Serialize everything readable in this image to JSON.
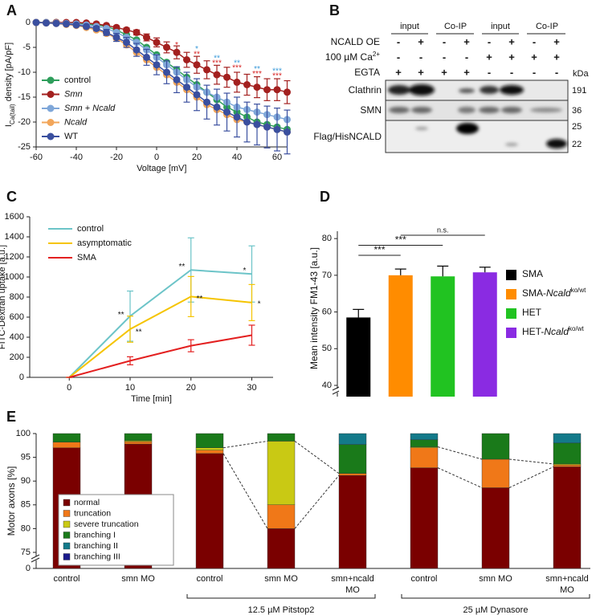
{
  "panel_labels": [
    "A",
    "B",
    "C",
    "D",
    "E"
  ],
  "chart_data": [
    {
      "type": "line",
      "xlabel": "Voltage [mV]",
      "ylabel": [
        "I",
        "Ca(tail)",
        " density [pA/pF]"
      ],
      "x": [
        -60,
        -55,
        -50,
        -45,
        -40,
        -35,
        -30,
        -25,
        -20,
        -15,
        -10,
        -5,
        0,
        5,
        10,
        15,
        20,
        25,
        30,
        35,
        40,
        45,
        50,
        55,
        60,
        65
      ],
      "xlim": [
        -60,
        65
      ],
      "xticks": [
        -60,
        -40,
        -20,
        0,
        20,
        40,
        60
      ],
      "ylim": [
        -25,
        0
      ],
      "yticks": [
        -25,
        -20,
        -15,
        -10,
        -5,
        0
      ],
      "markers": true,
      "legend": "left",
      "series": [
        {
          "name": "control",
          "color": "#2e9e5b",
          "italic": false,
          "values": [
            0,
            0,
            0,
            -0.1,
            -0.2,
            -0.3,
            -0.5,
            -0.8,
            -1.5,
            -2.5,
            -3.5,
            -5,
            -6.5,
            -8,
            -9.5,
            -11,
            -12.5,
            -14,
            -15.5,
            -17,
            -18,
            -19,
            -20,
            -20.5,
            -21,
            -21.5
          ]
        },
        {
          "name": "Smn",
          "color": "#a3201f",
          "italic": true,
          "values": [
            0,
            0,
            0,
            0,
            0,
            -0.1,
            -0.3,
            -0.6,
            -1,
            -1.5,
            -2,
            -3,
            -4,
            -5,
            -6,
            -7.5,
            -8.5,
            -9.5,
            -10.5,
            -11,
            -12,
            -12.5,
            -13,
            -13.5,
            -13.5,
            -14
          ],
          "errors": [
            0,
            0,
            0,
            0,
            0,
            0.1,
            0.1,
            0.2,
            0.3,
            0.4,
            0.5,
            0.7,
            0.9,
            1.1,
            1.3,
            1.5,
            1.7,
            1.8,
            1.9,
            2,
            2,
            2.1,
            2.1,
            2.2,
            2.2,
            2.3
          ]
        },
        {
          "name": "Smn + Ncald",
          "color": "#7fa7d9",
          "italic": true,
          "values": [
            0,
            0,
            -0.1,
            -0.2,
            -0.3,
            -0.5,
            -0.8,
            -1.2,
            -2,
            -3,
            -4,
            -5.5,
            -7,
            -8.5,
            -10,
            -11.5,
            -13,
            -14,
            -15,
            -16,
            -17,
            -17.5,
            -18,
            -18.5,
            -19,
            -19.5
          ]
        },
        {
          "name": "Ncald",
          "color": "#f2a65a",
          "italic": true,
          "values": [
            0,
            -0.1,
            -0.2,
            -0.4,
            -0.6,
            -1,
            -1.5,
            -2.2,
            -3.2,
            -4.5,
            -6,
            -7.5,
            -9,
            -10.5,
            -12,
            -13.5,
            -15,
            -16.5,
            -17.5,
            -18.5,
            -19.5,
            -20,
            -20.5,
            -21,
            -21.5,
            -22
          ]
        },
        {
          "name": "WT",
          "color": "#3a4f9f",
          "italic": false,
          "values": [
            0,
            -0.1,
            -0.2,
            -0.3,
            -0.5,
            -0.8,
            -1.2,
            -2,
            -3,
            -4,
            -5.5,
            -7,
            -8.5,
            -10,
            -11.5,
            -13,
            -14.5,
            -16,
            -17,
            -18,
            -19,
            -20,
            -20.5,
            -21,
            -21.5,
            -22
          ],
          "errors": [
            0,
            0,
            0.1,
            0.1,
            0.2,
            0.3,
            0.4,
            0.6,
            0.8,
            1,
            1.3,
            1.6,
            2,
            2.3,
            2.6,
            3,
            3.2,
            3.4,
            3.6,
            3.8,
            4,
            4,
            4.1,
            4.2,
            4.3,
            4.4
          ]
        }
      ],
      "annotations": [
        {
          "x": 10,
          "y": -4.6,
          "text": "*",
          "color": "#d62020"
        },
        {
          "x": 20,
          "y": -5.4,
          "text": "*",
          "color": "#3a9ad9"
        },
        {
          "x": 20,
          "y": -6.4,
          "text": "**",
          "color": "#d62020"
        },
        {
          "x": 30,
          "y": -7.2,
          "text": "**",
          "color": "#3a9ad9"
        },
        {
          "x": 30,
          "y": -8.2,
          "text": "***",
          "color": "#d62020"
        },
        {
          "x": 40,
          "y": -8.2,
          "text": "**",
          "color": "#3a9ad9"
        },
        {
          "x": 40,
          "y": -9.2,
          "text": "***",
          "color": "#d62020"
        },
        {
          "x": 50,
          "y": -9.4,
          "text": "**",
          "color": "#3a9ad9"
        },
        {
          "x": 50,
          "y": -10.4,
          "text": "***",
          "color": "#d62020"
        },
        {
          "x": 60,
          "y": -9.8,
          "text": "***",
          "color": "#3a9ad9"
        },
        {
          "x": 60,
          "y": -10.8,
          "text": "***",
          "color": "#d62020"
        }
      ]
    },
    {
      "type": "line",
      "xlabel": "Time [min]",
      "ylabel": [
        "FITC-Dextran uptake [a.u.]"
      ],
      "x": [
        0,
        10,
        20,
        30
      ],
      "xlim": [
        -6.5,
        33.5
      ],
      "xticks": [
        0,
        10,
        20,
        30
      ],
      "ylim": [
        0,
        1600
      ],
      "yticks": [
        0,
        200,
        400,
        600,
        800,
        1000,
        1200,
        1400,
        1600
      ],
      "markers": false,
      "legend": "top-left",
      "series": [
        {
          "name": "control",
          "color": "#6cc4c8",
          "italic": false,
          "values": [
            0,
            610,
            1070,
            1030
          ],
          "errors": [
            0,
            250,
            320,
            280
          ]
        },
        {
          "name": "asymptomatic",
          "color": "#f5c400",
          "italic": false,
          "values": [
            0,
            480,
            805,
            745
          ],
          "errors": [
            0,
            130,
            200,
            180
          ]
        },
        {
          "name": "SMA",
          "color": "#e32020",
          "italic": false,
          "values": [
            0,
            165,
            315,
            420
          ],
          "errors": [
            0,
            40,
            60,
            100
          ]
        }
      ],
      "annotations": [
        {
          "x": 8.5,
          "y": 620,
          "text": "**",
          "color": "#111"
        },
        {
          "x": 11.4,
          "y": 450,
          "text": "**",
          "color": "#111"
        },
        {
          "x": 18.5,
          "y": 1100,
          "text": "**",
          "color": "#111"
        },
        {
          "x": 21.4,
          "y": 780,
          "text": "**",
          "color": "#111"
        },
        {
          "x": 28.8,
          "y": 1060,
          "text": "*",
          "color": "#111"
        },
        {
          "x": 31.2,
          "y": 730,
          "text": "*",
          "color": "#111"
        }
      ]
    },
    {
      "type": "bar",
      "ylabel": [
        "Mean intensity FM1-43 [a.u.]"
      ],
      "categories": [
        [
          "SMA"
        ],
        [
          "SMA-",
          "Ncald",
          "ko/wt"
        ],
        [
          "HET"
        ],
        [
          "HET-",
          "Ncald",
          "ko/wt"
        ]
      ],
      "values": [
        58.5,
        70,
        69.7,
        70.8
      ],
      "errors": [
        2.2,
        1.7,
        2.8,
        1.4
      ],
      "colors": [
        "#000000",
        "#ff8c00",
        "#21c321",
        "#8a2be2"
      ],
      "ylim": [
        40,
        82
      ],
      "yticks": [
        40,
        50,
        60,
        70,
        80
      ],
      "axis_break": true,
      "legend": "right",
      "comparisons": [
        {
          "from": 0,
          "to": 1,
          "text": "***"
        },
        {
          "from": 0,
          "to": 2,
          "text": "***"
        },
        {
          "from": 1,
          "to": 3,
          "text": "n.s."
        }
      ]
    },
    {
      "type": "stacked-bar",
      "ylabel": [
        "Motor axons [%]"
      ],
      "categories": [
        [
          "control"
        ],
        [
          "smn MO"
        ],
        [
          "control"
        ],
        [
          "smn MO"
        ],
        [
          "smn+ncald",
          "MO"
        ],
        [
          "control"
        ],
        [
          "smn MO"
        ],
        [
          "smn+ncald",
          "MO"
        ]
      ],
      "series": [
        {
          "name": "normal",
          "color": "#7a0000",
          "values": [
            97,
            97.8,
            95.8,
            80,
            91.2,
            92.8,
            88.6,
            93
          ]
        },
        {
          "name": "truncation",
          "color": "#f07818",
          "values": [
            1.2,
            0.5,
            0.7,
            5,
            0.4,
            4.2,
            6,
            0.4
          ]
        },
        {
          "name": "severe truncation",
          "color": "#c9c914",
          "values": [
            0,
            0.2,
            0.5,
            13.4,
            0,
            0.2,
            0,
            0.2
          ]
        },
        {
          "name": "branching I",
          "color": "#1a7a1a",
          "values": [
            1.8,
            1.5,
            3,
            1.6,
            6.1,
            1.5,
            5.4,
            4.4
          ]
        },
        {
          "name": "branching II",
          "color": "#137a8a",
          "values": [
            0,
            0,
            0,
            0,
            2.3,
            1.3,
            0,
            2
          ]
        },
        {
          "name": "branching III",
          "color": "#1a1a8c",
          "values": [
            0,
            0,
            0,
            0,
            0,
            0,
            0,
            0
          ]
        }
      ],
      "ylim": [
        0,
        100
      ],
      "yticks": [
        0,
        75,
        80,
        85,
        90,
        95,
        100
      ],
      "axis_break": [
        0,
        75
      ],
      "legend": "top-left",
      "groups": [
        {
          "label": "12.5 µM Pitstop2",
          "from": 2,
          "to": 4
        },
        {
          "label": "25 µM Dynasore",
          "from": 5,
          "to": 7
        }
      ]
    }
  ],
  "blot": {
    "columns": [
      "input",
      "Co-IP",
      "input",
      "Co-IP"
    ],
    "rows": [
      {
        "label": [
          "NCALD OE"
        ],
        "signs": [
          "-",
          "+",
          "-",
          "+",
          "-",
          "+",
          "-",
          "+"
        ]
      },
      {
        "label": [
          "100 µM Ca",
          "2+"
        ],
        "signs": [
          "-",
          "-",
          "-",
          "-",
          "+",
          "+",
          "+",
          "+"
        ]
      },
      {
        "label": [
          "EGTA"
        ],
        "signs": [
          "+",
          "+",
          "+",
          "+",
          "-",
          "-",
          "-",
          "-"
        ]
      }
    ],
    "unit": "kDa",
    "bands": [
      {
        "label": "Clathrin",
        "kda": [
          191
        ]
      },
      {
        "label": "SMN",
        "kda": [
          36
        ]
      },
      {
        "label": "Flag/HisNCALD",
        "kda": [
          25,
          22
        ]
      }
    ]
  }
}
